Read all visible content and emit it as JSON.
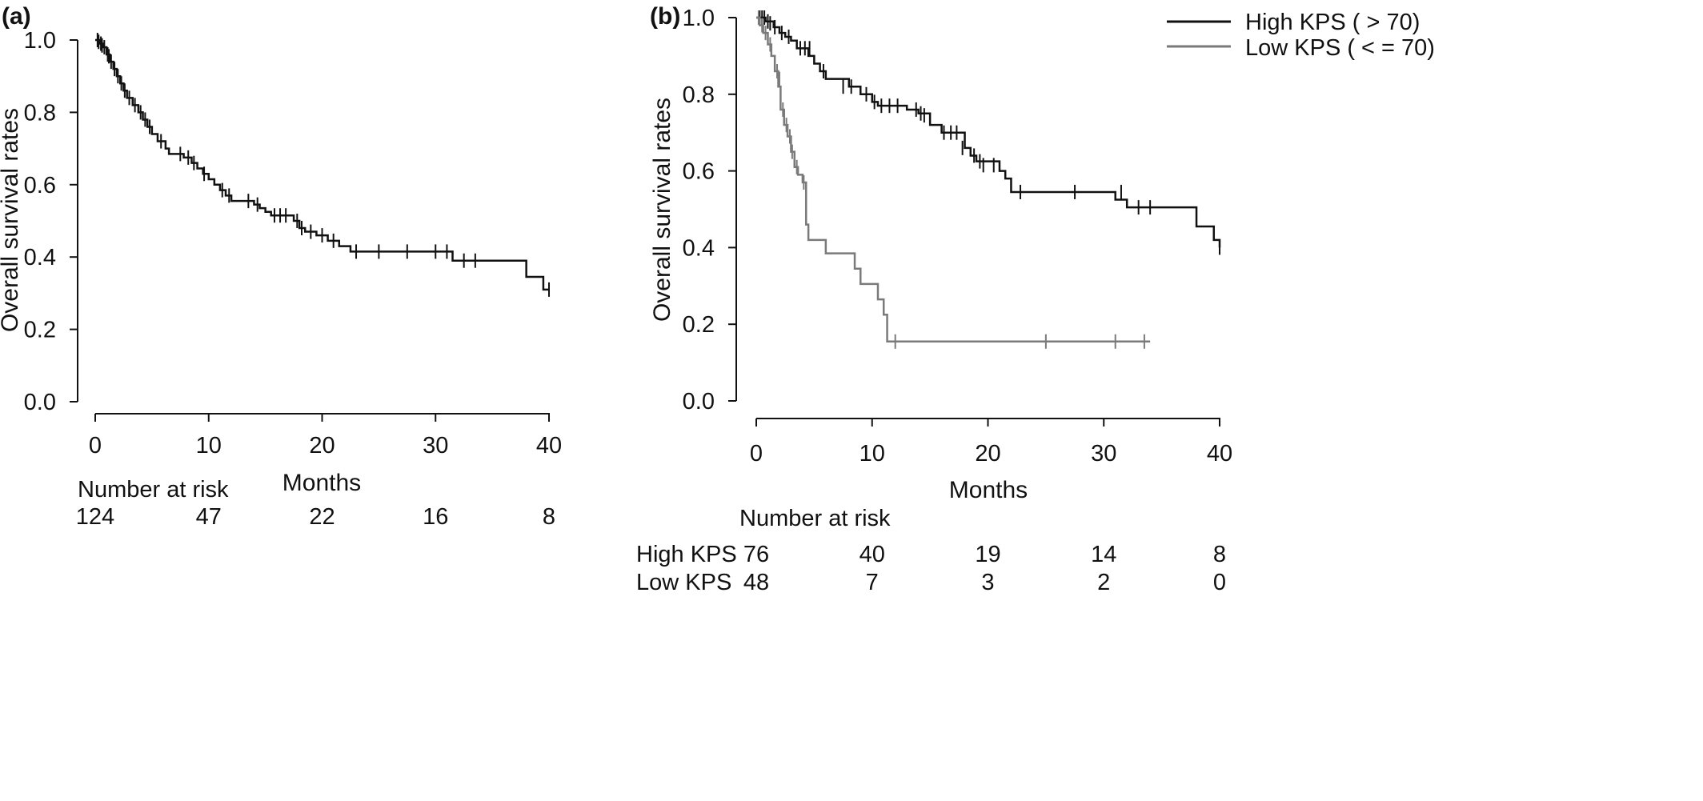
{
  "chart_data": [
    {
      "panel_label": "(a)",
      "type": "line",
      "subtype": "kaplan-meier",
      "xlabel": "Months",
      "ylabel": "Overall survival rates",
      "xlim": [
        0,
        40
      ],
      "ylim": [
        0,
        1
      ],
      "x_ticks": [
        "0",
        "10",
        "20",
        "30",
        "40"
      ],
      "y_ticks": [
        "0.0",
        "0.2",
        "0.4",
        "0.6",
        "0.8",
        "1.0"
      ],
      "series": [
        {
          "color": "#111111",
          "steps": [
            [
              0,
              1.0
            ],
            [
              0.4,
              0.99
            ],
            [
              0.7,
              0.98
            ],
            [
              1.0,
              0.96
            ],
            [
              1.3,
              0.94
            ],
            [
              1.6,
              0.92
            ],
            [
              1.9,
              0.9
            ],
            [
              2.2,
              0.88
            ],
            [
              2.5,
              0.86
            ],
            [
              2.8,
              0.84
            ],
            [
              3.3,
              0.82
            ],
            [
              3.8,
              0.8
            ],
            [
              4.2,
              0.78
            ],
            [
              4.6,
              0.76
            ],
            [
              5.0,
              0.74
            ],
            [
              5.5,
              0.72
            ],
            [
              6.2,
              0.7
            ],
            [
              6.5,
              0.685
            ],
            [
              7.8,
              0.675
            ],
            [
              8.5,
              0.66
            ],
            [
              9.0,
              0.645
            ],
            [
              9.5,
              0.63
            ],
            [
              10.0,
              0.615
            ],
            [
              10.5,
              0.6
            ],
            [
              11.0,
              0.585
            ],
            [
              11.5,
              0.57
            ],
            [
              12.0,
              0.555
            ],
            [
              14.0,
              0.545
            ],
            [
              14.5,
              0.535
            ],
            [
              15.0,
              0.525
            ],
            [
              15.5,
              0.515
            ],
            [
              17.5,
              0.5
            ],
            [
              18.0,
              0.48
            ],
            [
              18.5,
              0.47
            ],
            [
              19.5,
              0.46
            ],
            [
              20.5,
              0.445
            ],
            [
              21.5,
              0.43
            ],
            [
              22.5,
              0.415
            ],
            [
              31.5,
              0.39
            ],
            [
              38.0,
              0.345
            ],
            [
              39.5,
              0.31
            ]
          ],
          "end_x": 40,
          "censored": [
            [
              0.2,
              1.0
            ],
            [
              0.3,
              0.995
            ],
            [
              0.5,
              0.99
            ],
            [
              0.6,
              0.985
            ],
            [
              0.8,
              0.98
            ],
            [
              1.1,
              0.96
            ],
            [
              1.2,
              0.955
            ],
            [
              1.4,
              0.94
            ],
            [
              1.7,
              0.92
            ],
            [
              2.0,
              0.9
            ],
            [
              2.3,
              0.88
            ],
            [
              2.6,
              0.86
            ],
            [
              3.0,
              0.84
            ],
            [
              3.5,
              0.82
            ],
            [
              4.0,
              0.8
            ],
            [
              4.4,
              0.78
            ],
            [
              4.8,
              0.76
            ],
            [
              5.8,
              0.72
            ],
            [
              7.5,
              0.685
            ],
            [
              8.2,
              0.675
            ],
            [
              8.7,
              0.66
            ],
            [
              9.6,
              0.63
            ],
            [
              11.2,
              0.585
            ],
            [
              11.8,
              0.57
            ],
            [
              13.5,
              0.555
            ],
            [
              14.3,
              0.545
            ],
            [
              15.8,
              0.515
            ],
            [
              16.3,
              0.515
            ],
            [
              16.8,
              0.515
            ],
            [
              17.8,
              0.5
            ],
            [
              18.2,
              0.48
            ],
            [
              19.0,
              0.47
            ],
            [
              20.0,
              0.46
            ],
            [
              21.0,
              0.445
            ],
            [
              23.0,
              0.415
            ],
            [
              25.0,
              0.415
            ],
            [
              27.5,
              0.415
            ],
            [
              30.0,
              0.415
            ],
            [
              31.0,
              0.415
            ],
            [
              32.5,
              0.39
            ],
            [
              33.5,
              0.39
            ],
            [
              40.0,
              0.31
            ]
          ]
        }
      ],
      "risk_table": {
        "header": "Number at risk",
        "rows": [
          {
            "label": "",
            "values": [
              "124",
              "47",
              "22",
              "16",
              "8"
            ]
          }
        ]
      }
    },
    {
      "panel_label": "(b)",
      "type": "line",
      "subtype": "kaplan-meier",
      "xlabel": "Months",
      "ylabel": "Overall survival rates",
      "xlim": [
        0,
        40
      ],
      "ylim": [
        0,
        1
      ],
      "x_ticks": [
        "0",
        "10",
        "20",
        "30",
        "40"
      ],
      "y_ticks": [
        "0.0",
        "0.2",
        "0.4",
        "0.6",
        "0.8",
        "1.0"
      ],
      "legend_position": "top-right",
      "series": [
        {
          "name": "High KPS ( > 70)",
          "color": "#111111",
          "steps": [
            [
              0,
              1.0
            ],
            [
              0.8,
              0.99
            ],
            [
              1.5,
              0.975
            ],
            [
              2.0,
              0.96
            ],
            [
              2.5,
              0.95
            ],
            [
              3.0,
              0.94
            ],
            [
              3.5,
              0.92
            ],
            [
              4.5,
              0.9
            ],
            [
              5.0,
              0.88
            ],
            [
              5.5,
              0.86
            ],
            [
              6.0,
              0.84
            ],
            [
              8.0,
              0.82
            ],
            [
              9.0,
              0.8
            ],
            [
              10.0,
              0.78
            ],
            [
              10.5,
              0.77
            ],
            [
              13.0,
              0.76
            ],
            [
              14.0,
              0.75
            ],
            [
              15.0,
              0.72
            ],
            [
              16.0,
              0.7
            ],
            [
              18.0,
              0.66
            ],
            [
              18.5,
              0.64
            ],
            [
              19.0,
              0.625
            ],
            [
              21.0,
              0.6
            ],
            [
              21.5,
              0.58
            ],
            [
              22.0,
              0.545
            ],
            [
              31.0,
              0.525
            ],
            [
              32.0,
              0.505
            ],
            [
              38.0,
              0.455
            ],
            [
              39.5,
              0.42
            ],
            [
              40.0,
              0.4
            ]
          ],
          "end_x": 40,
          "censored": [
            [
              0.3,
              1.0
            ],
            [
              0.5,
              1.0
            ],
            [
              0.7,
              1.0
            ],
            [
              1.0,
              0.99
            ],
            [
              1.2,
              0.985
            ],
            [
              1.6,
              0.975
            ],
            [
              2.2,
              0.96
            ],
            [
              2.8,
              0.95
            ],
            [
              3.8,
              0.92
            ],
            [
              4.2,
              0.92
            ],
            [
              4.6,
              0.92
            ],
            [
              5.8,
              0.86
            ],
            [
              7.5,
              0.82
            ],
            [
              8.2,
              0.82
            ],
            [
              9.5,
              0.8
            ],
            [
              10.2,
              0.78
            ],
            [
              10.8,
              0.77
            ],
            [
              11.5,
              0.77
            ],
            [
              12.2,
              0.77
            ],
            [
              13.8,
              0.76
            ],
            [
              14.2,
              0.75
            ],
            [
              14.5,
              0.745
            ],
            [
              16.2,
              0.7
            ],
            [
              16.8,
              0.7
            ],
            [
              17.3,
              0.7
            ],
            [
              17.8,
              0.66
            ],
            [
              18.8,
              0.64
            ],
            [
              19.3,
              0.625
            ],
            [
              19.6,
              0.615
            ],
            [
              20.5,
              0.615
            ],
            [
              22.8,
              0.545
            ],
            [
              27.5,
              0.545
            ],
            [
              31.5,
              0.545
            ],
            [
              33.0,
              0.505
            ],
            [
              34.0,
              0.505
            ],
            [
              40.0,
              0.4
            ]
          ]
        },
        {
          "name": "Low KPS ( < = 70)",
          "color": "#7a7a7a",
          "steps": [
            [
              0,
              1.0
            ],
            [
              0.3,
              0.98
            ],
            [
              0.6,
              0.96
            ],
            [
              1.0,
              0.93
            ],
            [
              1.3,
              0.9
            ],
            [
              1.6,
              0.86
            ],
            [
              1.9,
              0.82
            ],
            [
              2.1,
              0.76
            ],
            [
              2.4,
              0.72
            ],
            [
              2.7,
              0.69
            ],
            [
              3.0,
              0.65
            ],
            [
              3.3,
              0.61
            ],
            [
              3.6,
              0.59
            ],
            [
              4.0,
              0.57
            ],
            [
              4.3,
              0.46
            ],
            [
              4.5,
              0.42
            ],
            [
              6.0,
              0.385
            ],
            [
              8.5,
              0.345
            ],
            [
              9.0,
              0.305
            ],
            [
              10.5,
              0.265
            ],
            [
              11.0,
              0.225
            ],
            [
              11.3,
              0.155
            ]
          ],
          "end_x": 34,
          "censored": [
            [
              0.2,
              1.0
            ],
            [
              0.5,
              0.98
            ],
            [
              0.8,
              0.96
            ],
            [
              1.2,
              0.93
            ],
            [
              1.8,
              0.86
            ],
            [
              2.0,
              0.84
            ],
            [
              2.3,
              0.76
            ],
            [
              2.6,
              0.72
            ],
            [
              2.9,
              0.69
            ],
            [
              3.1,
              0.65
            ],
            [
              3.5,
              0.61
            ],
            [
              4.1,
              0.57
            ],
            [
              12.0,
              0.155
            ],
            [
              25.0,
              0.155
            ],
            [
              31.0,
              0.155
            ],
            [
              33.5,
              0.155
            ]
          ]
        }
      ],
      "risk_table": {
        "header": "Number at risk",
        "rows": [
          {
            "label": "High KPS",
            "values": [
              "76",
              "40",
              "19",
              "14",
              "8"
            ]
          },
          {
            "label": "Low KPS",
            "values": [
              "48",
              "7",
              "3",
              "2",
              "0"
            ]
          }
        ]
      }
    }
  ]
}
